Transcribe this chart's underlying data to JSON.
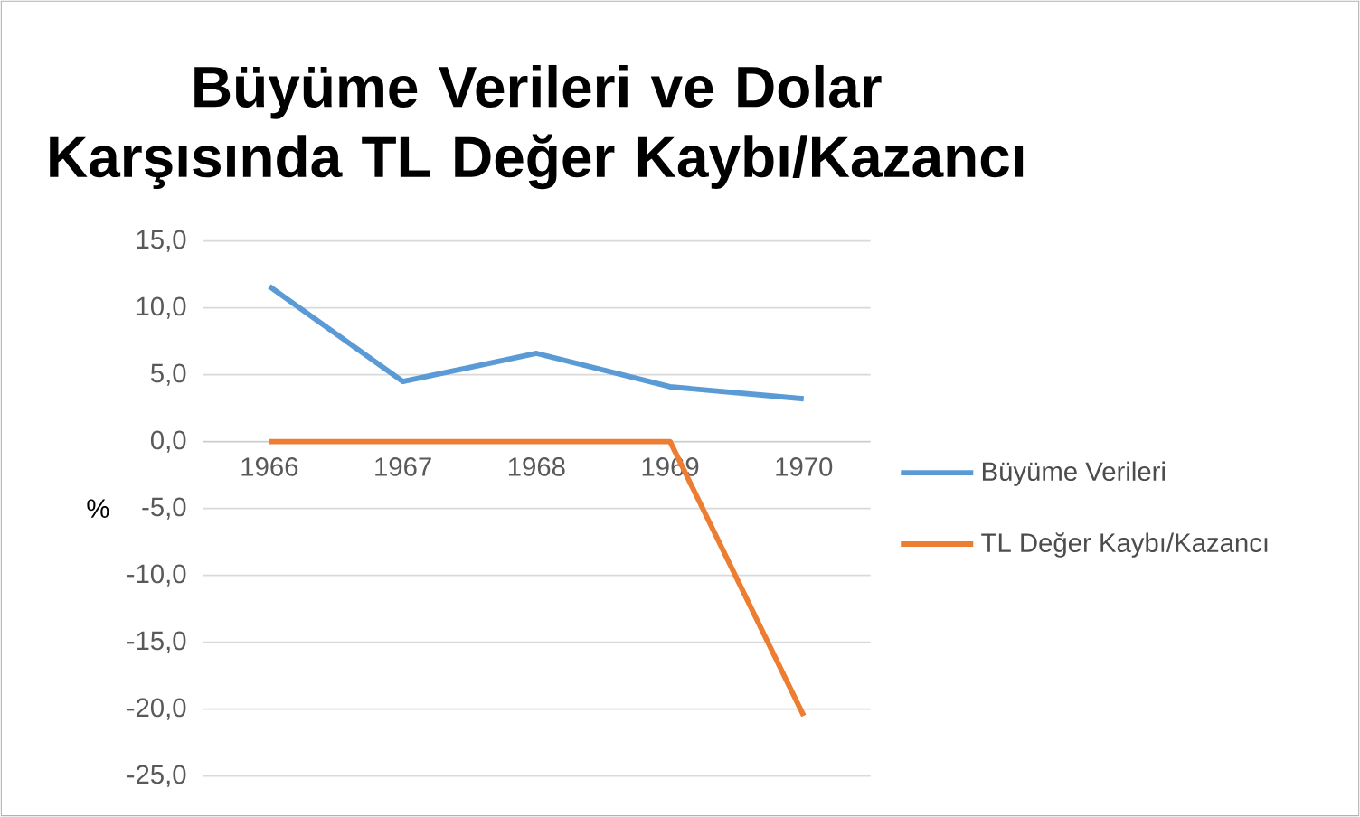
{
  "chart_data": {
    "type": "line",
    "title": "Büyüme Verileri ve Dolar Karşısında TL Değer Kaybı/Kazancı",
    "ylabel": "%",
    "categories": [
      "1966",
      "1967",
      "1968",
      "1969",
      "1970"
    ],
    "series": [
      {
        "name": "Büyüme Verileri",
        "color": "#5b9bd5",
        "values": [
          11.6,
          4.5,
          6.6,
          4.1,
          3.2
        ]
      },
      {
        "name": "TL Değer Kaybı/Kazancı",
        "color": "#ed7d31",
        "values": [
          0,
          0,
          0,
          0,
          -20.5
        ]
      }
    ],
    "ylim": [
      -25,
      15
    ],
    "yticks": [
      {
        "value": -25,
        "label": "-25,0"
      },
      {
        "value": -20,
        "label": "-20,0"
      },
      {
        "value": -15,
        "label": "-15,0"
      },
      {
        "value": -10,
        "label": "-10,0"
      },
      {
        "value": -5,
        "label": "-5,0"
      },
      {
        "value": 0,
        "label": "0,0"
      },
      {
        "value": 5,
        "label": "5,0"
      },
      {
        "value": 10,
        "label": "10,0"
      },
      {
        "value": 15,
        "label": "15,0"
      }
    ],
    "grid": "y",
    "legend": "right",
    "marker": "none",
    "line_style": "solid"
  }
}
